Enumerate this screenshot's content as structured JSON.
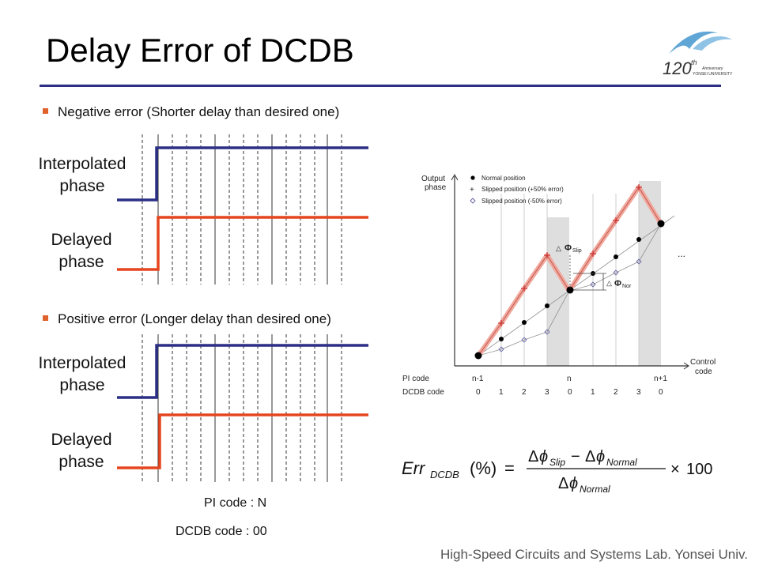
{
  "title": "Delay Error of DCDB",
  "logo": {
    "number": "120",
    "sup": "th",
    "line1": "Anniversary",
    "line2": "YONSEI UNIVERSITY"
  },
  "bullets": [
    "Negative error (Shorter delay than desired one)",
    "Positive error (Longer delay than desired one)"
  ],
  "waveform_labels": {
    "interpolated": [
      "Interpolated",
      "phase"
    ],
    "delayed": [
      "Delayed",
      "phase"
    ]
  },
  "codes": {
    "pi": "PI code : N",
    "dcdb": "DCDB code : 00"
  },
  "colors": {
    "interpolated": "#2c2f86",
    "delayed": "#e5461f",
    "accent": "#e0622a",
    "rule": "#2c2f86"
  },
  "plot": {
    "y_axis": [
      "Output",
      "phase"
    ],
    "x_axis": [
      "Control",
      "code"
    ],
    "legend": [
      "Normal position",
      "Slipped position (+50% error)",
      "Slipped position (-50% error)"
    ],
    "annotations": {
      "slip": "Slip",
      "nor": "Nor",
      "dots": "..."
    },
    "pi_label": "PI code",
    "dcdb_label": "DCDB code",
    "pi_ticks": [
      "n-1",
      "n",
      "n+1"
    ],
    "dcdb_ticks": [
      "0",
      "1",
      "2",
      "3",
      "0",
      "1",
      "2",
      "3",
      "0"
    ]
  },
  "footer": "High-Speed Circuits and Systems Lab. Yonsei Univ."
}
